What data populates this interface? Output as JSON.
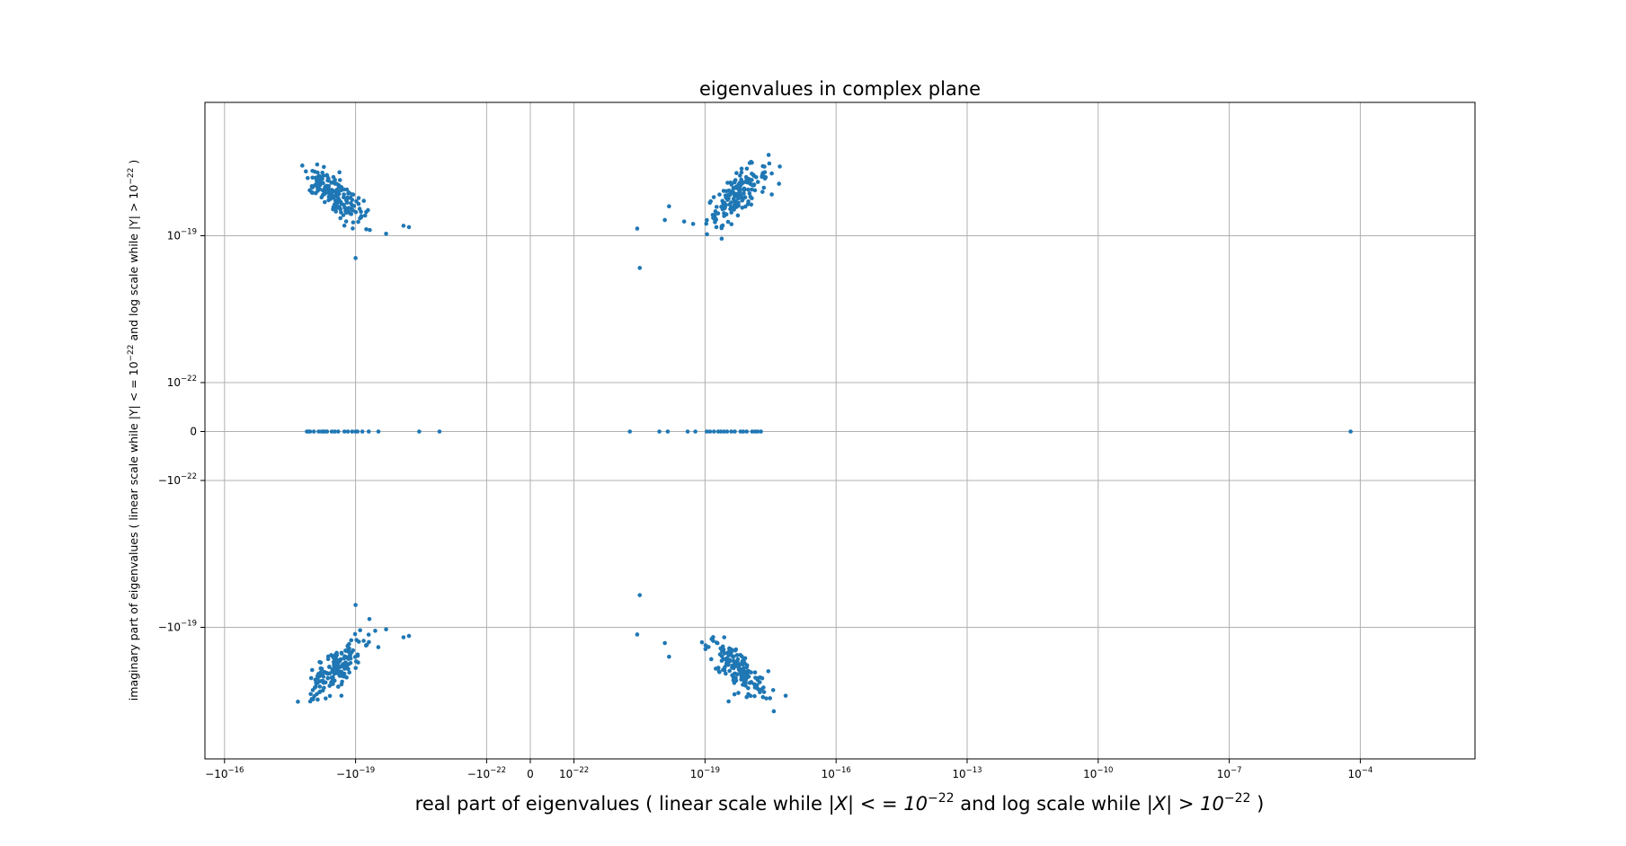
{
  "chart_data": {
    "type": "scatter",
    "title": "eigenvalues in complex plane",
    "xlabel": {
      "pre": "real part of eigenvalues ( linear scale while ",
      "cond1": "|X| < = 10",
      "exp1": "−22",
      "mid": " and log scale while  ",
      "cond2": "|X| > 10",
      "exp2": "−22",
      "post": " )"
    },
    "ylabel": {
      "pre": "imaginary part of eigenvalues ( linear scale while |Y| < = 10",
      "exp1": "−22",
      "mid": " and log scale while |Y| > 10",
      "exp2": "−22",
      "post": " )"
    },
    "x_scale": "symlog",
    "y_scale": "symlog",
    "linthresh": 1e-22,
    "xlim": [
      -3e-16,
      0.1
    ],
    "ylim": [
      -6e-18,
      6e-18
    ],
    "grid": true,
    "x_ticks": [
      {
        "sign": "−",
        "base": "10",
        "exp": "−16",
        "value": -1e-16
      },
      {
        "sign": "−",
        "base": "10",
        "exp": "−19",
        "value": -1e-19
      },
      {
        "sign": "−",
        "base": "10",
        "exp": "−22",
        "value": -1e-22
      },
      {
        "sign": "",
        "base": "0",
        "exp": "",
        "value": 0
      },
      {
        "sign": "",
        "base": "10",
        "exp": "−22",
        "value": 1e-22
      },
      {
        "sign": "",
        "base": "10",
        "exp": "−19",
        "value": 1e-19
      },
      {
        "sign": "",
        "base": "10",
        "exp": "−16",
        "value": 1e-16
      },
      {
        "sign": "",
        "base": "10",
        "exp": "−13",
        "value": 1e-13
      },
      {
        "sign": "",
        "base": "10",
        "exp": "−10",
        "value": 1e-10
      },
      {
        "sign": "",
        "base": "10",
        "exp": "−7",
        "value": 1e-07
      },
      {
        "sign": "",
        "base": "10",
        "exp": "−4",
        "value": 0.0001
      }
    ],
    "y_ticks": [
      {
        "sign": "",
        "base": "10",
        "exp": "−19",
        "value": 1e-19
      },
      {
        "sign": "",
        "base": "10",
        "exp": "−22",
        "value": 1e-22
      },
      {
        "sign": "",
        "base": "0",
        "exp": "",
        "value": 0
      },
      {
        "sign": "−",
        "base": "10",
        "exp": "−22",
        "value": -1e-22
      },
      {
        "sign": "−",
        "base": "10",
        "exp": "−19",
        "value": -1e-19
      }
    ],
    "series": [
      {
        "color": "#1f77b4",
        "clusters": [
          {
            "count": 170,
            "x_center": -3e-19,
            "x_spread": 0.35,
            "y_center": 7e-19,
            "y_spread": 0.3,
            "corr": -0.75
          },
          {
            "count": 170,
            "x_center": 5.5e-19,
            "x_spread": 0.35,
            "y_center": 7e-19,
            "y_spread": 0.3,
            "corr": 0.75
          },
          {
            "count": 170,
            "x_center": -3e-19,
            "x_spread": 0.35,
            "y_center": -7e-19,
            "y_spread": 0.3,
            "corr": 0.75
          },
          {
            "count": 170,
            "x_center": 5.5e-19,
            "x_spread": 0.35,
            "y_center": -7e-19,
            "y_spread": 0.3,
            "corr": -0.75
          }
        ],
        "extra_points": [
          [
            3.2e-21,
            2.2e-20
          ],
          [
            3.2e-21,
            -2.2e-20
          ],
          [
            2.8e-21,
            1.4e-19
          ],
          [
            2.8e-21,
            -1.4e-19
          ],
          [
            -6e-21,
            1.5e-19
          ],
          [
            -6e-21,
            -1.5e-19
          ],
          [
            -8e-21,
            1.6e-19
          ],
          [
            -8e-21,
            -1.6e-19
          ],
          [
            -2e-20,
            1.1e-19
          ],
          [
            -2e-20,
            -1.1e-19
          ],
          [
            -1e-19,
            3.5e-20
          ],
          [
            -1e-19,
            -3.5e-20
          ],
          [
            1.2e-20,
            2.1e-19
          ],
          [
            1.2e-20,
            -2.1e-19
          ],
          [
            1.5e-20,
            4e-19
          ],
          [
            1.5e-20,
            -4e-19
          ],
          [
            1.9e-21,
            0
          ],
          [
            -1.2e-21,
            0
          ],
          [
            -3.5e-21,
            0
          ],
          [
            9e-21,
            0
          ],
          [
            1.4e-20,
            0
          ],
          [
            6e-05,
            0
          ]
        ],
        "real_axis_points": [
          -1.3e-18,
          -1.2e-18,
          -1.1e-18,
          -9e-19,
          -7e-19,
          -6e-19,
          -5.5e-19,
          -5e-19,
          -4.5e-19,
          -3.5e-19,
          -3e-19,
          -2.5e-19,
          -1.8e-19,
          -1.5e-19,
          -1.2e-19,
          -1e-19,
          -9e-20,
          -7e-20,
          -5e-20,
          -3e-20,
          4e-20,
          6e-20,
          1.1e-19,
          1.3e-19,
          1.6e-19,
          2e-19,
          2.3e-19,
          2.7e-19,
          3.2e-19,
          4e-19,
          4.8e-19,
          6.5e-19,
          7.5e-19,
          9e-19,
          1.2e-18,
          1.4e-18,
          1.6e-18,
          1.9e-18
        ]
      }
    ]
  }
}
